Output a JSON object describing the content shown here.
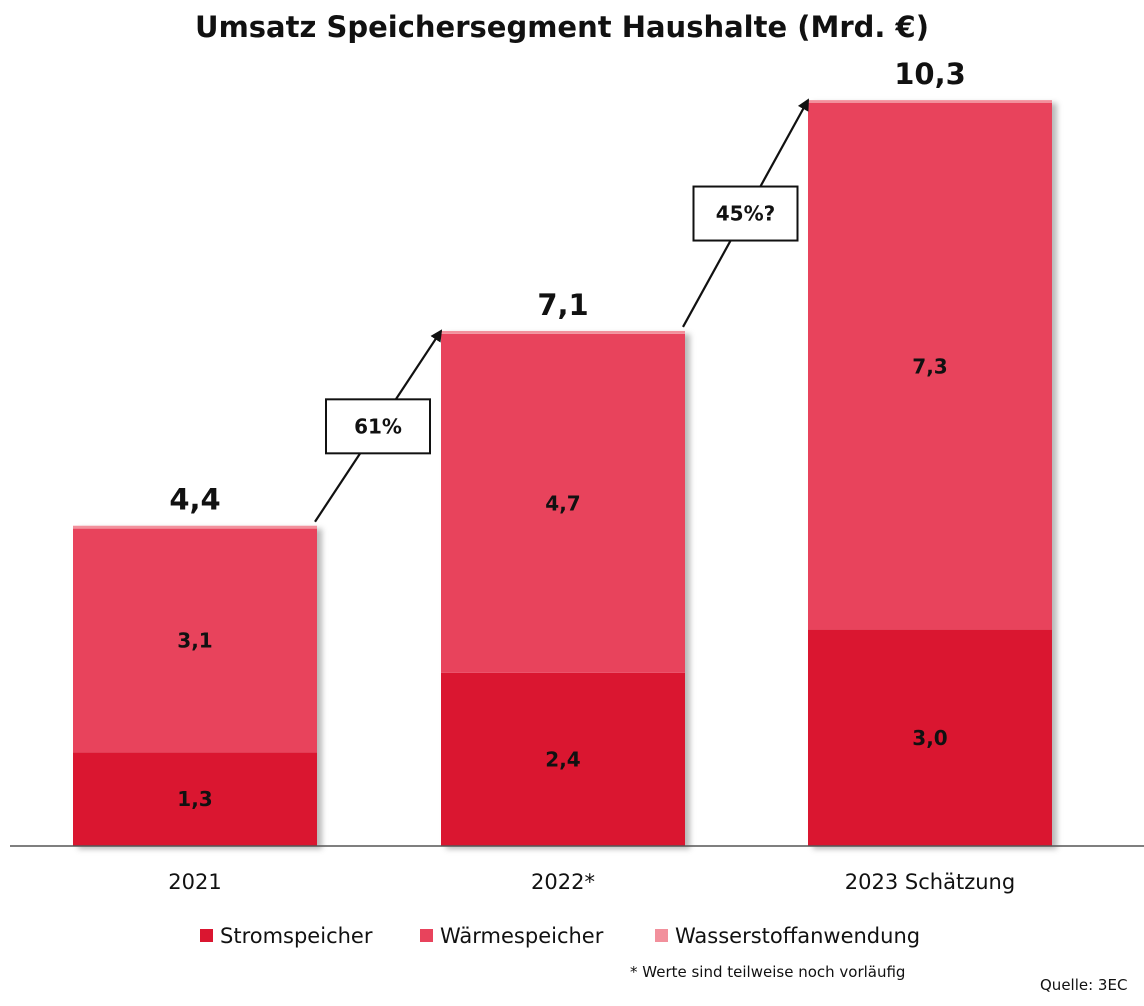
{
  "chart_data": {
    "type": "bar",
    "stacked": true,
    "title": "Umsatz Speichersegment Haushalte (Mrd. €)",
    "categories": [
      "2021",
      "2022*",
      "2023 Schätzung"
    ],
    "series": [
      {
        "name": "Stromspeicher",
        "values": [
          1.3,
          2.4,
          3.0
        ],
        "labels": [
          "1,3",
          "2,4",
          "3,0"
        ],
        "color": "#da1630"
      },
      {
        "name": "Wärmespeicher",
        "values": [
          3.1,
          4.7,
          7.3
        ],
        "labels": [
          "3,1",
          "4,7",
          "7,3"
        ],
        "color": "#e8435c"
      },
      {
        "name": "Wasserstoffanwendung",
        "values": [
          0.04,
          0.04,
          0.04
        ],
        "labels": [
          "",
          "",
          ""
        ],
        "color": "#f2909c"
      }
    ],
    "totals": [
      4.4,
      7.1,
      10.3
    ],
    "total_labels": [
      "4,4",
      "7,1",
      "10,3"
    ],
    "growth": [
      {
        "from": "2021",
        "to": "2022*",
        "label": "61%"
      },
      {
        "from": "2022*",
        "to": "2023 Schätzung",
        "label": "45%?"
      }
    ],
    "ylim": [
      0,
      10.3
    ],
    "grid": false,
    "legend_position": "bottom",
    "footnote": "* Werte sind teilweise noch vorläufig",
    "source": "Quelle: 3EC"
  }
}
